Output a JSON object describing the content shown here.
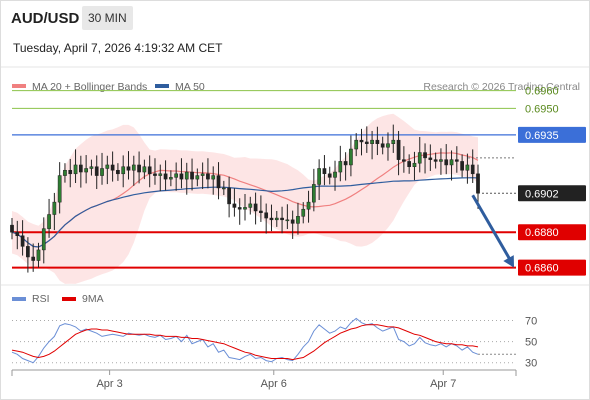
{
  "header": {
    "symbol": "AUD/USD",
    "timeframe": "30 MIN",
    "datetime": "Tuesday, April 7, 2026 4:19:32 AM CET"
  },
  "colors": {
    "ma20": "#f08080",
    "ma50": "#2f5d9e",
    "bollinger_fill": "#fde0e0",
    "candle": "#2e7d32",
    "resistance_blue": "#3b6fd8",
    "target_green": "#8bc34a",
    "support_red": "#e00000",
    "arrow": "#2f5d9e",
    "rsi": "#6b8fd6",
    "rsi_ma": "#e00000"
  },
  "chart_data": [
    {
      "type": "candlestick",
      "legend": [
        {
          "name": "MA 20 + Bollinger Bands",
          "color": "#f08080"
        },
        {
          "name": "MA 50",
          "color": "#2f5d9e"
        }
      ],
      "legend_placement": "top-left",
      "copyright": "Research © 2026 Trading Central",
      "ylim": [
        0.6853,
        0.6966
      ],
      "x_ticks": [
        {
          "label": "Apr 3",
          "index": 19
        },
        {
          "label": "Apr 6",
          "index": 50
        },
        {
          "label": "Apr 7",
          "index": 82
        }
      ],
      "levels": [
        {
          "value": 0.696,
          "label": "0.6960",
          "style": "target",
          "color": "#8bc34a"
        },
        {
          "value": 0.695,
          "label": "0.6950",
          "style": "target",
          "color": "#8bc34a"
        },
        {
          "value": 0.6935,
          "label": "0.6935",
          "style": "resistance",
          "color": "#3b6fd8"
        },
        {
          "value": 0.6902,
          "label": "0.6902",
          "style": "last",
          "color": "#222222"
        },
        {
          "value": 0.688,
          "label": "0.6880",
          "style": "support",
          "color": "#e00000"
        },
        {
          "value": 0.686,
          "label": "0.6860",
          "style": "support",
          "color": "#e00000"
        }
      ],
      "last_price": 0.6902,
      "arrow": {
        "from_index": 87,
        "from_value": 0.6902,
        "to_index": 92,
        "to_value": 0.686
      },
      "closes": [
        0.688,
        0.6878,
        0.6872,
        0.6866,
        0.6864,
        0.687,
        0.6882,
        0.689,
        0.6897,
        0.6912,
        0.6915,
        0.6913,
        0.6918,
        0.6914,
        0.6916,
        0.6917,
        0.6912,
        0.6916,
        0.6918,
        0.6915,
        0.6913,
        0.6917,
        0.6915,
        0.6918,
        0.6914,
        0.6917,
        0.6913,
        0.6912,
        0.6913,
        0.691,
        0.6911,
        0.6913,
        0.691,
        0.6914,
        0.691,
        0.6912,
        0.6913,
        0.691,
        0.6912,
        0.6905,
        0.6905,
        0.6896,
        0.6894,
        0.6893,
        0.6894,
        0.6896,
        0.6892,
        0.6891,
        0.6888,
        0.6887,
        0.6888,
        0.6887,
        0.6887,
        0.6885,
        0.6889,
        0.6893,
        0.6897,
        0.6907,
        0.6916,
        0.6913,
        0.6911,
        0.6914,
        0.692,
        0.6918,
        0.6927,
        0.6932,
        0.6931,
        0.693,
        0.6932,
        0.693,
        0.6928,
        0.693,
        0.6932,
        0.6921,
        0.692,
        0.6917,
        0.6919,
        0.6925,
        0.6922,
        0.6921,
        0.692,
        0.6921,
        0.6918,
        0.6921,
        0.692,
        0.6915,
        0.6918,
        0.6913,
        0.6902
      ]
    },
    {
      "type": "line",
      "title": "",
      "legend": [
        {
          "name": "RSI",
          "color": "#6b8fd6"
        },
        {
          "name": "9MA",
          "color": "#e00000"
        }
      ],
      "legend_placement": "top-left",
      "ylim": [
        25,
        80
      ],
      "y_ticks": [
        70,
        50,
        30
      ],
      "reference_lines": [
        70,
        50,
        30
      ],
      "series": [
        {
          "name": "RSI",
          "values": [
            40,
            38,
            34,
            32,
            30,
            36,
            44,
            50,
            55,
            65,
            67,
            66,
            64,
            60,
            62,
            60,
            58,
            55,
            56,
            57,
            56,
            55,
            58,
            57,
            56,
            57,
            55,
            54,
            56,
            52,
            53,
            55,
            50,
            56,
            48,
            50,
            52,
            45,
            48,
            40,
            42,
            35,
            34,
            33,
            36,
            38,
            34,
            35,
            32,
            31,
            34,
            35,
            33,
            32,
            38,
            45,
            50,
            60,
            66,
            62,
            58,
            60,
            64,
            62,
            68,
            72,
            68,
            66,
            67,
            63,
            60,
            62,
            64,
            52,
            50,
            46,
            48,
            54,
            49,
            47,
            46,
            48,
            45,
            48,
            46,
            42,
            45,
            40,
            38
          ]
        },
        {
          "name": "9MA",
          "values": [
            42,
            41,
            40,
            38,
            36,
            35,
            36,
            38,
            41,
            45,
            49,
            53,
            57,
            59,
            61,
            62,
            62,
            61,
            61,
            60,
            59,
            58,
            57,
            57,
            57,
            57,
            57,
            56,
            56,
            55,
            55,
            55,
            54,
            54,
            53,
            53,
            52,
            51,
            50,
            49,
            48,
            46,
            44,
            42,
            40,
            39,
            37,
            36,
            35,
            34,
            34,
            34,
            34,
            33,
            34,
            35,
            38,
            41,
            45,
            49,
            52,
            55,
            58,
            60,
            62,
            63,
            65,
            66,
            66,
            66,
            65,
            64,
            64,
            63,
            61,
            59,
            57,
            56,
            54,
            52,
            50,
            49,
            48,
            48,
            47,
            47,
            46,
            46,
            45
          ]
        }
      ],
      "x_ticks": [
        {
          "label": "Apr 3",
          "index": 19
        },
        {
          "label": "Apr 6",
          "index": 50
        },
        {
          "label": "Apr 7",
          "index": 82
        }
      ]
    }
  ]
}
